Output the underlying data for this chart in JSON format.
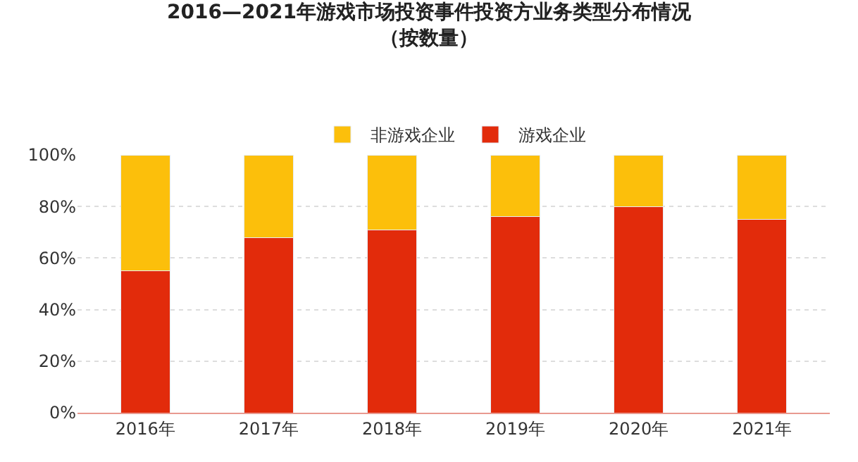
{
  "chart_data": {
    "type": "bar",
    "stacked": true,
    "title": "2016—2021年游戏市场投资事件投资方业务类型分布情况",
    "subtitle": "（按数量）",
    "categories": [
      "2016年",
      "2017年",
      "2018年",
      "2019年",
      "2020年",
      "2021年"
    ],
    "series": [
      {
        "name": "游戏企业",
        "color": "#e22b0b",
        "values": [
          55,
          68,
          71,
          76,
          80,
          75
        ]
      },
      {
        "name": "非游戏企业",
        "color": "#fcbf0b",
        "values": [
          45,
          32,
          29,
          24,
          20,
          25
        ]
      }
    ],
    "ylim": [
      0,
      100
    ],
    "yticks": [
      {
        "value": 0,
        "label": "0%"
      },
      {
        "value": 20,
        "label": "20%"
      },
      {
        "value": 40,
        "label": "40%"
      },
      {
        "value": 60,
        "label": "60%"
      },
      {
        "value": 80,
        "label": "80%"
      },
      {
        "value": 100,
        "label": "100%"
      }
    ],
    "grid": "y",
    "legend": "top"
  }
}
